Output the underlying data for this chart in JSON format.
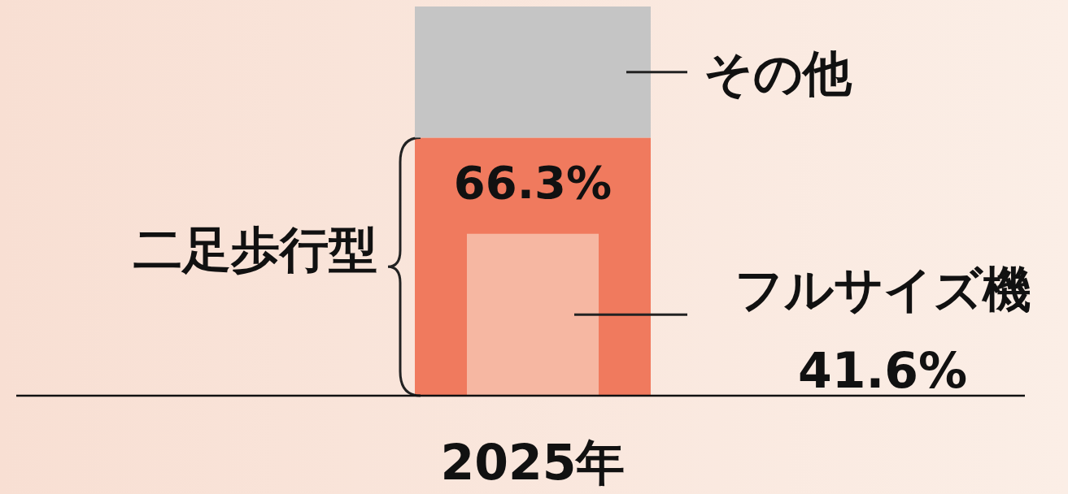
{
  "chart_data": {
    "type": "bar",
    "stacked": true,
    "categories": [
      "2025年"
    ],
    "legend": false,
    "series": [
      {
        "name": "二足歩行型",
        "color": "#f07a5e",
        "values": [
          66.3
        ],
        "value_labels": [
          "66.3%"
        ]
      },
      {
        "name": "その他",
        "color": "#c5c5c5",
        "values": [
          33.7
        ]
      }
    ],
    "bands": [
      {
        "axis": "y",
        "from": 0,
        "to": 41.6,
        "label": "フルサイズ機 41.6%",
        "color": "#f6b7a2"
      }
    ]
  }
}
